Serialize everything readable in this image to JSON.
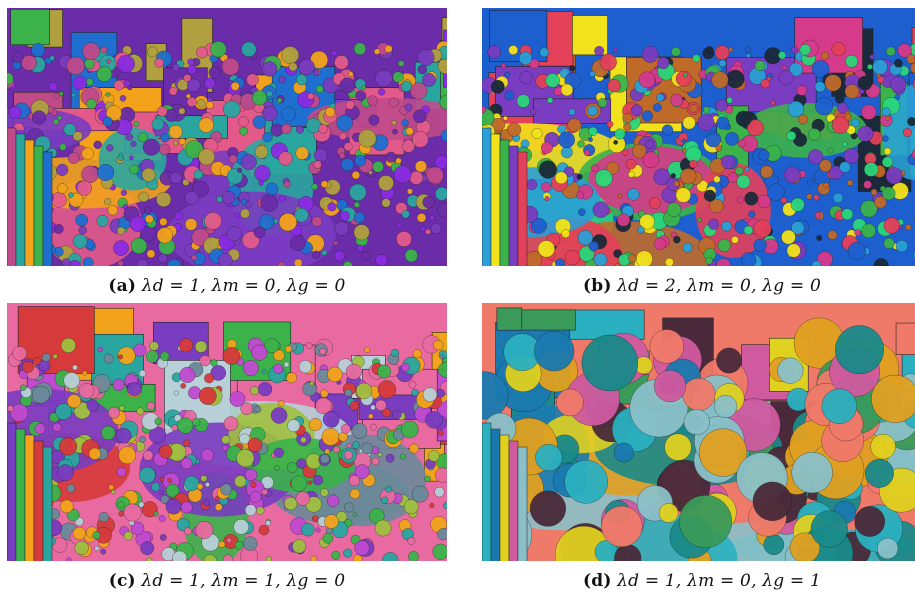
{
  "panels": [
    {
      "id": "a",
      "label": "(a)",
      "formula": "λd = 1, λm = 0, λg = 0",
      "palette": [
        "#6a2ca8",
        "#7a3cc0",
        "#c04a8a",
        "#2aa6a0",
        "#f2a31b",
        "#3bb34a",
        "#1e6fd0",
        "#e35a8a",
        "#b0a040",
        "#8a2be2"
      ]
    },
    {
      "id": "b",
      "label": "(b)",
      "formula": "λd = 2, λm = 0, λg = 0",
      "palette": [
        "#1e5fd0",
        "#d63a8a",
        "#2aa0d6",
        "#f2e21b",
        "#3bb34a",
        "#7a3cc0",
        "#e3405a",
        "#1a2a3a",
        "#c06a2a",
        "#2ad67a"
      ]
    },
    {
      "id": "c",
      "label": "(c)",
      "formula": "λd = 1, λm = 1, λg = 0",
      "palette": [
        "#e86aa0",
        "#b8d0d8",
        "#7a3cc0",
        "#3bb34a",
        "#f2a31b",
        "#d63a3a",
        "#2aa6a0",
        "#a0c040",
        "#c04ad0",
        "#6a8a9a"
      ]
    },
    {
      "id": "d",
      "label": "(d)",
      "formula": "λd = 1, λm = 0, λg = 1",
      "palette": [
        "#f07a6a",
        "#3a9a5a",
        "#2ab0c0",
        "#1a7ab0",
        "#e0d020",
        "#d05aa0",
        "#8ac0c8",
        "#4a2a3a",
        "#e0a020",
        "#1a8a8a"
      ]
    }
  ]
}
